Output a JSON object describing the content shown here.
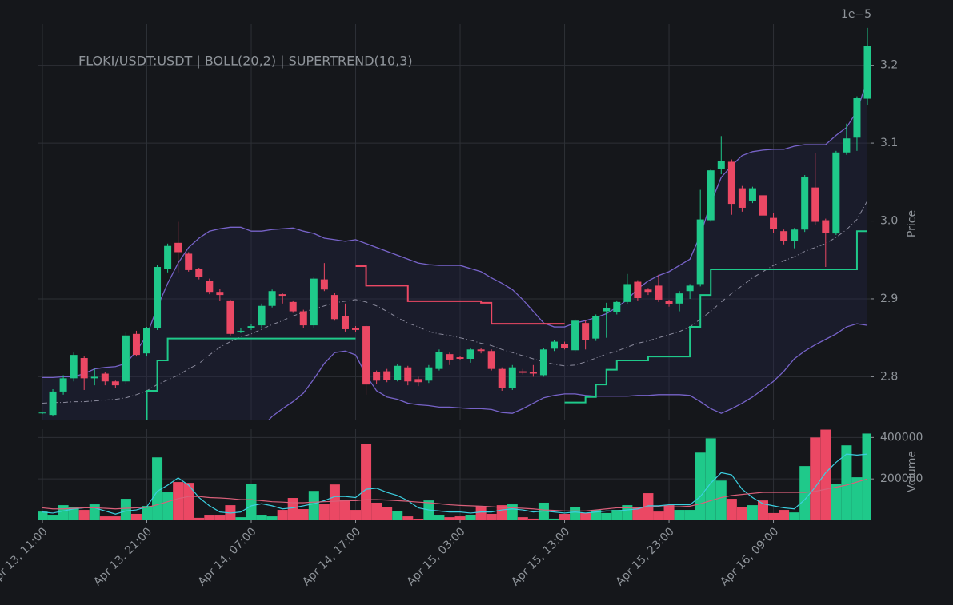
{
  "chart_data": [
    {
      "type": "candlestick",
      "title": "FLOKI/USDT:USDT | BOLL(20,2) | SUPERTREND(10,3)",
      "ylabel": "Price",
      "offset_text": "1e−5",
      "ylim": [
        2.745,
        3.253
      ],
      "yticks": [
        2.8,
        2.9,
        {
          "value": 3,
          "label": "3.0"
        },
        3.1,
        3.2
      ],
      "grid": true,
      "up_color": "#1fc98a",
      "down_color": "#eb4864",
      "open": [
        2.753,
        2.751,
        2.781,
        2.798,
        2.824,
        2.798,
        2.804,
        2.794,
        2.794,
        2.855,
        2.83,
        2.862,
        2.938,
        2.972,
        2.958,
        2.938,
        2.923,
        2.909,
        2.898,
        2.858,
        2.863,
        2.866,
        2.891,
        2.906,
        2.896,
        2.884,
        2.866,
        2.925,
        2.905,
        2.878,
        2.862,
        2.865,
        2.806,
        2.807,
        2.796,
        2.812,
        2.797,
        2.795,
        2.81,
        2.829,
        2.825,
        2.823,
        2.835,
        2.833,
        2.81,
        2.785,
        2.807,
        2.806,
        2.802,
        2.836,
        2.842,
        2.834,
        2.869,
        2.849,
        2.884,
        2.883,
        2.896,
        2.922,
        2.912,
        2.917,
        2.897,
        2.894,
        2.91,
        2.919,
        3.001,
        3.067,
        3.076,
        3.042,
        3.026,
        3.033,
        3.004,
        2.987,
        2.974,
        2.989,
        3.043,
        3.001,
        2.984,
        3.088,
        3.107,
        3.157
      ],
      "high": [
        2.754,
        2.784,
        2.802,
        2.831,
        2.826,
        2.81,
        2.806,
        2.795,
        2.857,
        2.859,
        2.864,
        2.944,
        2.971,
        2.999,
        2.96,
        2.94,
        2.926,
        2.913,
        2.899,
        2.862,
        2.868,
        2.894,
        2.912,
        2.907,
        2.898,
        2.886,
        2.928,
        2.946,
        2.908,
        2.894,
        2.865,
        2.866,
        2.808,
        2.81,
        2.816,
        2.814,
        2.8,
        2.815,
        2.835,
        2.831,
        2.827,
        2.837,
        2.837,
        2.835,
        2.812,
        2.815,
        2.81,
        2.815,
        2.837,
        2.847,
        2.845,
        2.874,
        2.872,
        2.88,
        2.895,
        2.898,
        2.932,
        2.924,
        2.914,
        2.931,
        2.899,
        2.91,
        2.919,
        3.04,
        3.067,
        3.109,
        3.079,
        3.045,
        3.044,
        3.035,
        3.01,
        2.989,
        2.991,
        3.059,
        3.087,
        3.003,
        3.09,
        3.125,
        3.16,
        3.248
      ],
      "low": [
        2.752,
        2.749,
        2.777,
        2.794,
        2.783,
        2.789,
        2.789,
        2.786,
        2.791,
        2.826,
        2.826,
        2.86,
        2.934,
        2.934,
        2.935,
        2.925,
        2.906,
        2.897,
        2.853,
        2.856,
        2.86,
        2.863,
        2.889,
        2.894,
        2.882,
        2.862,
        2.863,
        2.91,
        2.872,
        2.858,
        2.857,
        2.777,
        2.791,
        2.793,
        2.794,
        2.789,
        2.788,
        2.792,
        2.808,
        2.815,
        2.821,
        2.818,
        2.83,
        2.808,
        2.782,
        2.783,
        2.803,
        2.8,
        2.8,
        2.833,
        2.835,
        2.832,
        2.835,
        2.846,
        2.85,
        2.88,
        2.893,
        2.898,
        2.905,
        2.896,
        2.89,
        2.884,
        2.9,
        2.916,
        2.999,
        3.06,
        3.008,
        3.012,
        3.023,
        3.004,
        2.985,
        2.97,
        2.965,
        2.986,
        2.995,
        2.941,
        2.982,
        3.085,
        3.09,
        3.149
      ],
      "close": [
        2.754,
        2.781,
        2.798,
        2.828,
        2.798,
        2.8,
        2.794,
        2.789,
        2.853,
        2.828,
        2.862,
        2.941,
        2.968,
        2.96,
        2.937,
        2.928,
        2.909,
        2.905,
        2.855,
        2.859,
        2.865,
        2.891,
        2.91,
        2.904,
        2.884,
        2.866,
        2.926,
        2.912,
        2.874,
        2.861,
        2.86,
        2.79,
        2.795,
        2.796,
        2.814,
        2.794,
        2.793,
        2.812,
        2.832,
        2.822,
        2.823,
        2.835,
        2.833,
        2.81,
        2.786,
        2.812,
        2.805,
        2.804,
        2.835,
        2.845,
        2.837,
        2.872,
        2.847,
        2.878,
        2.888,
        2.896,
        2.919,
        2.901,
        2.909,
        2.899,
        2.893,
        2.907,
        2.917,
        3.002,
        3.065,
        3.077,
        3.022,
        3.017,
        3.042,
        3.007,
        2.99,
        2.974,
        2.989,
        3.057,
        2.999,
        2.985,
        3.088,
        3.106,
        3.158,
        3.225
      ],
      "bands": {
        "line_color": "#7763c9",
        "middle_color": "#8a8a9c",
        "fill_color": "#26264a",
        "upper": [
          2.799,
          2.799,
          2.8,
          2.8,
          2.804,
          2.81,
          2.812,
          2.813,
          2.817,
          2.833,
          2.853,
          2.889,
          2.92,
          2.946,
          2.966,
          2.978,
          2.987,
          2.99,
          2.992,
          2.992,
          2.987,
          2.987,
          2.989,
          2.99,
          2.991,
          2.987,
          2.984,
          2.978,
          2.976,
          2.974,
          2.976,
          2.971,
          2.966,
          2.961,
          2.956,
          2.951,
          2.946,
          2.944,
          2.943,
          2.943,
          2.943,
          2.939,
          2.935,
          2.927,
          2.92,
          2.912,
          2.899,
          2.884,
          2.869,
          2.864,
          2.864,
          2.869,
          2.872,
          2.876,
          2.881,
          2.889,
          2.899,
          2.913,
          2.923,
          2.93,
          2.935,
          2.943,
          2.951,
          2.982,
          3.023,
          3.056,
          3.071,
          3.084,
          3.089,
          3.091,
          3.092,
          3.092,
          3.096,
          3.098,
          3.098,
          3.098,
          3.11,
          3.12,
          3.141,
          3.182
        ],
        "middle": [
          2.766,
          2.767,
          2.767,
          2.768,
          2.768,
          2.769,
          2.77,
          2.771,
          2.773,
          2.777,
          2.782,
          2.79,
          2.796,
          2.802,
          2.81,
          2.817,
          2.828,
          2.838,
          2.845,
          2.851,
          2.855,
          2.861,
          2.867,
          2.872,
          2.878,
          2.883,
          2.887,
          2.891,
          2.895,
          2.897,
          2.899,
          2.896,
          2.891,
          2.884,
          2.876,
          2.869,
          2.864,
          2.858,
          2.855,
          2.853,
          2.85,
          2.847,
          2.843,
          2.84,
          2.835,
          2.831,
          2.827,
          2.823,
          2.819,
          2.816,
          2.814,
          2.815,
          2.819,
          2.824,
          2.829,
          2.833,
          2.838,
          2.843,
          2.846,
          2.85,
          2.854,
          2.858,
          2.864,
          2.874,
          2.884,
          2.896,
          2.907,
          2.917,
          2.927,
          2.935,
          2.943,
          2.949,
          2.954,
          2.961,
          2.966,
          2.971,
          2.979,
          2.989,
          3.002,
          3.026
        ],
        "lower": [
          2.733,
          2.735,
          2.734,
          2.736,
          2.732,
          2.728,
          2.728,
          2.729,
          2.729,
          2.721,
          2.711,
          2.691,
          2.672,
          2.658,
          2.654,
          2.656,
          2.669,
          2.686,
          2.698,
          2.71,
          2.723,
          2.735,
          2.749,
          2.759,
          2.768,
          2.779,
          2.797,
          2.817,
          2.831,
          2.833,
          2.828,
          2.802,
          2.782,
          2.774,
          2.771,
          2.766,
          2.764,
          2.763,
          2.761,
          2.761,
          2.76,
          2.759,
          2.759,
          2.758,
          2.754,
          2.753,
          2.759,
          2.766,
          2.773,
          2.776,
          2.778,
          2.778,
          2.776,
          2.775,
          2.775,
          2.775,
          2.775,
          2.776,
          2.776,
          2.777,
          2.777,
          2.777,
          2.776,
          2.768,
          2.759,
          2.753,
          2.759,
          2.766,
          2.774,
          2.784,
          2.794,
          2.807,
          2.823,
          2.833,
          2.841,
          2.848,
          2.855,
          2.864,
          2.868,
          2.866
        ]
      },
      "lines": [
        {
          "color": "#1fc98a",
          "style": "step",
          "values": [
            null,
            null,
            null,
            null,
            null,
            null,
            null,
            null,
            null,
            2.74,
            2.782,
            2.821,
            2.849,
            2.849,
            2.849,
            2.849,
            2.849,
            2.849,
            2.849,
            2.849,
            2.849,
            2.849,
            2.849,
            2.849,
            2.849,
            2.849,
            2.849,
            2.849,
            2.849,
            2.849,
            2.849,
            null,
            null,
            null,
            null,
            null,
            null,
            null,
            null,
            null,
            null,
            null,
            null,
            null,
            null,
            null,
            null,
            null,
            null,
            null,
            2.767,
            2.767,
            2.774,
            2.79,
            2.809,
            2.821,
            2.821,
            2.821,
            2.826,
            2.826,
            2.826,
            2.826,
            2.864,
            2.905,
            2.938,
            2.938,
            2.938,
            2.938,
            2.938,
            2.938,
            2.938,
            2.938,
            2.938,
            2.938,
            2.938,
            2.938,
            2.938,
            2.938,
            2.987,
            2.987
          ]
        },
        {
          "color": "#eb4864",
          "style": "step",
          "values": [
            null,
            null,
            null,
            null,
            null,
            null,
            null,
            null,
            null,
            null,
            null,
            null,
            null,
            null,
            null,
            null,
            null,
            null,
            null,
            null,
            null,
            null,
            null,
            null,
            null,
            null,
            null,
            null,
            null,
            null,
            2.942,
            2.917,
            2.917,
            2.917,
            2.917,
            2.897,
            2.897,
            2.897,
            2.897,
            2.897,
            2.897,
            2.897,
            2.895,
            2.868,
            2.868,
            2.868,
            2.868,
            2.868,
            2.868,
            2.868,
            2.868,
            null,
            null,
            null,
            null,
            null,
            null,
            null,
            null,
            null,
            null,
            null,
            null,
            null,
            null,
            null,
            null,
            null,
            null,
            null,
            null,
            null,
            null,
            null,
            null,
            null,
            null,
            null,
            null,
            null
          ]
        }
      ]
    },
    {
      "type": "bar",
      "ylabel": "Volume",
      "ylim": [
        0,
        440000
      ],
      "yticks": [
        200000,
        400000
      ],
      "grid": true,
      "categories": [
        "Apr 13, 11:00",
        null,
        null,
        null,
        null,
        null,
        null,
        null,
        null,
        null,
        "Apr 13, 21:00",
        null,
        null,
        null,
        null,
        null,
        null,
        null,
        null,
        null,
        "Apr 14, 07:00",
        null,
        null,
        null,
        null,
        null,
        null,
        null,
        null,
        null,
        "Apr 14, 17:00",
        null,
        null,
        null,
        null,
        null,
        null,
        null,
        null,
        null,
        "Apr 15, 03:00",
        null,
        null,
        null,
        null,
        null,
        null,
        null,
        null,
        null,
        "Apr 15, 13:00",
        null,
        null,
        null,
        null,
        null,
        null,
        null,
        null,
        null,
        "Apr 15, 23:00",
        null,
        null,
        null,
        null,
        null,
        null,
        null,
        null,
        null,
        "Apr 16, 09:00",
        null,
        null,
        null,
        null,
        null,
        null,
        null,
        null,
        null
      ],
      "values": [
        42000,
        23000,
        73000,
        65000,
        50000,
        77000,
        19000,
        19000,
        104000,
        31000,
        69000,
        304000,
        135000,
        185000,
        181000,
        12000,
        23000,
        23000,
        73000,
        15000,
        177000,
        23000,
        19000,
        50000,
        108000,
        54000,
        142000,
        81000,
        173000,
        100000,
        50000,
        369000,
        85000,
        65000,
        46000,
        19000,
        4000,
        96000,
        23000,
        15000,
        19000,
        27000,
        69000,
        31000,
        73000,
        77000,
        15000,
        8000,
        85000,
        8000,
        31000,
        62000,
        35000,
        50000,
        35000,
        50000,
        73000,
        65000,
        131000,
        42000,
        73000,
        50000,
        50000,
        327000,
        396000,
        192000,
        104000,
        62000,
        73000,
        96000,
        35000,
        50000,
        38000,
        262000,
        400000,
        438000,
        177000,
        362000,
        208000,
        419000
      ],
      "lines": [
        {
          "color": "#3ccfe0",
          "values": [
            40000,
            35000,
            45000,
            55000,
            60000,
            60000,
            45000,
            30000,
            45000,
            50000,
            65000,
            140000,
            170000,
            205000,
            170000,
            110000,
            70000,
            40000,
            35000,
            40000,
            70000,
            80000,
            70000,
            55000,
            60000,
            70000,
            80000,
            95000,
            115000,
            115000,
            110000,
            150000,
            155000,
            135000,
            120000,
            95000,
            60000,
            50000,
            45000,
            40000,
            40000,
            35000,
            40000,
            40000,
            50000,
            55000,
            50000,
            40000,
            45000,
            40000,
            35000,
            40000,
            35000,
            40000,
            45000,
            45000,
            50000,
            55000,
            70000,
            70000,
            75000,
            75000,
            75000,
            115000,
            180000,
            230000,
            220000,
            150000,
            110000,
            80000,
            70000,
            60000,
            55000,
            100000,
            160000,
            230000,
            280000,
            320000,
            315000,
            320000
          ]
        },
        {
          "color": "#d9607a",
          "values": [
            60000,
            55000,
            55000,
            58000,
            60000,
            60000,
            58000,
            55000,
            58000,
            60000,
            62000,
            75000,
            90000,
            105000,
            115000,
            115000,
            110000,
            108000,
            105000,
            100000,
            100000,
            95000,
            90000,
            88000,
            85000,
            85000,
            88000,
            90000,
            92000,
            95000,
            95000,
            100000,
            100000,
            98000,
            95000,
            92000,
            88000,
            85000,
            80000,
            75000,
            72000,
            70000,
            68000,
            65000,
            62000,
            60000,
            58000,
            55000,
            50000,
            48000,
            45000,
            45000,
            45000,
            50000,
            55000,
            60000,
            60000,
            62000,
            65000,
            65000,
            65000,
            65000,
            68000,
            80000,
            95000,
            110000,
            120000,
            125000,
            130000,
            135000,
            135000,
            135000,
            135000,
            135000,
            140000,
            150000,
            160000,
            170000,
            185000,
            200000
          ]
        }
      ]
    }
  ]
}
